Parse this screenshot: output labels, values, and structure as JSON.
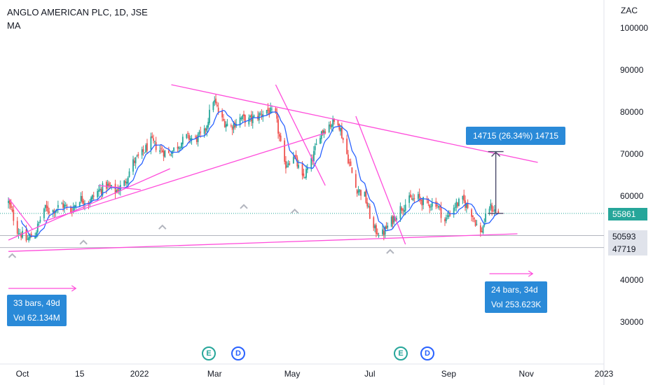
{
  "header": {
    "title": "ANGLO AMERICAN PLC, 1D, JSE",
    "indicator": "MA"
  },
  "currency_label": "ZAC",
  "colors": {
    "up": "#26a69a",
    "down": "#ef5350",
    "ma": "#2962ff",
    "trendline": "#ff4ddb",
    "measure": "#2a8ad8",
    "price_tag": "#26a69a",
    "level_tag": "#e0e3eb"
  },
  "chart_data": {
    "type": "candlestick",
    "y_axis": {
      "ticks": [
        100000,
        90000,
        80000,
        70000,
        60000,
        50000,
        40000,
        30000
      ],
      "tick_labels": [
        "100000",
        "90000",
        "80000",
        "70000",
        "60000",
        "40000",
        "30000"
      ],
      "range": [
        25000,
        104000
      ]
    },
    "x_axis": {
      "tick_labels": [
        "Oct",
        "15",
        "2022",
        "Mar",
        "May",
        "Jul",
        "Sep",
        "Nov",
        "2023"
      ]
    },
    "last_price": 55861,
    "levels": [
      {
        "value": 50593,
        "label": "50593"
      },
      {
        "value": 47719,
        "label": "47719"
      }
    ],
    "close_path": [
      [
        "2021-09-20",
        58500
      ],
      [
        "2021-09-27",
        52000
      ],
      [
        "2021-10-04",
        49500
      ],
      [
        "2021-10-11",
        51000
      ],
      [
        "2021-10-18",
        57000
      ],
      [
        "2021-10-25",
        56500
      ],
      [
        "2021-11-01",
        58000
      ],
      [
        "2021-11-08",
        56500
      ],
      [
        "2021-11-15",
        59500
      ],
      [
        "2021-11-22",
        58500
      ],
      [
        "2021-11-29",
        61000
      ],
      [
        "2021-12-06",
        62500
      ],
      [
        "2021-12-13",
        61000
      ],
      [
        "2021-12-20",
        63000
      ],
      [
        "2021-12-27",
        68000
      ],
      [
        "2022-01-03",
        70000
      ],
      [
        "2022-01-10",
        73000
      ],
      [
        "2022-01-17",
        71000
      ],
      [
        "2022-01-24",
        70000
      ],
      [
        "2022-01-31",
        72000
      ],
      [
        "2022-02-07",
        74000
      ],
      [
        "2022-02-14",
        73500
      ],
      [
        "2022-02-21",
        75000
      ],
      [
        "2022-02-28",
        83000
      ],
      [
        "2022-03-07",
        78000
      ],
      [
        "2022-03-14",
        76500
      ],
      [
        "2022-03-21",
        78500
      ],
      [
        "2022-03-28",
        78000
      ],
      [
        "2022-04-04",
        79000
      ],
      [
        "2022-04-11",
        80500
      ],
      [
        "2022-04-18",
        79000
      ],
      [
        "2022-04-25",
        67000
      ],
      [
        "2022-05-02",
        70000
      ],
      [
        "2022-05-09",
        64000
      ],
      [
        "2022-05-16",
        68000
      ],
      [
        "2022-05-23",
        75000
      ],
      [
        "2022-05-30",
        77000
      ],
      [
        "2022-06-06",
        78000
      ],
      [
        "2022-06-13",
        70000
      ],
      [
        "2022-06-20",
        62000
      ],
      [
        "2022-06-27",
        60000
      ],
      [
        "2022-07-04",
        52000
      ],
      [
        "2022-07-11",
        51000
      ],
      [
        "2022-07-18",
        54000
      ],
      [
        "2022-07-25",
        57000
      ],
      [
        "2022-08-01",
        59000
      ],
      [
        "2022-08-08",
        59500
      ],
      [
        "2022-08-15",
        58000
      ],
      [
        "2022-08-22",
        58500
      ],
      [
        "2022-08-29",
        54000
      ],
      [
        "2022-09-05",
        57500
      ],
      [
        "2022-09-12",
        59000
      ],
      [
        "2022-09-19",
        56000
      ],
      [
        "2022-09-26",
        51000
      ],
      [
        "2022-10-03",
        57500
      ],
      [
        "2022-10-10",
        55861
      ]
    ],
    "trendlines": [
      [
        [
          "2022-01-26",
          86500
        ],
        [
          "2022-11-10",
          68000
        ]
      ],
      [
        [
          "2021-09-20",
          46800
        ],
        [
          "2022-10-25",
          51000
        ]
      ],
      [
        [
          "2021-09-20",
          49500
        ],
        [
          "2022-01-25",
          66500
        ]
      ],
      [
        [
          "2021-09-20",
          59500
        ],
        [
          "2021-10-09",
          52000
        ]
      ],
      [
        [
          "2021-11-30",
          62500
        ],
        [
          "2022-01-02",
          61500
        ]
      ],
      [
        [
          "2021-10-18",
          54000
        ],
        [
          "2022-05-27",
          75000
        ]
      ],
      [
        [
          "2022-04-18",
          86500
        ],
        [
          "2022-05-27",
          62500
        ]
      ],
      [
        [
          "2022-06-20",
          79000
        ],
        [
          "2022-07-29",
          48500
        ]
      ]
    ],
    "measure": {
      "from": 55861,
      "to": 70576,
      "date": "2022-10-08",
      "label": "14715 (26.34%) 14715"
    },
    "date_ranges": [
      {
        "from": "2021-09-20",
        "to": "2021-11-12",
        "value": 38000,
        "bars": "33 bars, 49d",
        "volume": "Vol 62.134M"
      },
      {
        "from": "2022-10-03",
        "to": "2022-11-06",
        "value": 41500,
        "bars": "24 bars, 34d",
        "volume": "Vol 253.623K"
      }
    ],
    "events": [
      {
        "type": "E",
        "date": "2022-02-24"
      },
      {
        "type": "D",
        "date": "2022-03-10"
      },
      {
        "type": "E",
        "date": "2022-07-28"
      },
      {
        "type": "D",
        "date": "2022-08-11"
      }
    ]
  }
}
